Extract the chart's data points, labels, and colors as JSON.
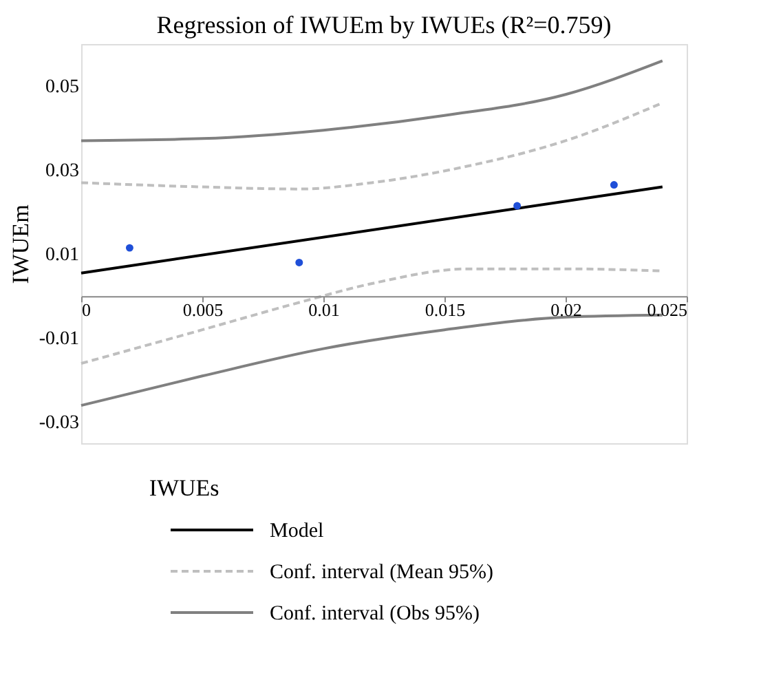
{
  "chart_data": {
    "type": "line",
    "title": "Regression of IWUEm by IWUEs (R²=0.759)",
    "xlabel": "IWUEs",
    "ylabel": "IWUEm",
    "xlim": [
      0,
      0.025
    ],
    "xticks": [
      0,
      0.005,
      0.01,
      0.015,
      0.02,
      0.025
    ],
    "ylim": [
      -0.035,
      0.06
    ],
    "yticks": [
      -0.03,
      -0.01,
      0.01,
      0.03,
      0.05
    ],
    "grid": false,
    "legend": "bottom",
    "series": [
      {
        "name": "Model",
        "color": "#000000",
        "line_style": "solid",
        "x": [
          0,
          0.024
        ],
        "values": [
          0.0055,
          0.026
        ]
      },
      {
        "name": "Conf. interval (Mean 95%)",
        "color": "#bfbfbf",
        "line_style": "dashed",
        "x": [
          0,
          0.005,
          0.009,
          0.012,
          0.016,
          0.02,
          0.024
        ],
        "values": [
          0.027,
          0.026,
          0.0255,
          0.027,
          0.031,
          0.037,
          0.046
        ]
      },
      {
        "color": "#bfbfbf",
        "line_style": "dashed",
        "x": [
          0,
          0.005,
          0.009,
          0.012,
          0.016,
          0.02,
          0.024
        ],
        "values": [
          -0.016,
          -0.008,
          -0.0015,
          0.003,
          0.0065,
          0.0065,
          0.006
        ]
      },
      {
        "name": "Conf. interval (Obs 95%)",
        "color": "#808080",
        "line_style": "solid",
        "x": [
          0,
          0.005,
          0.01,
          0.015,
          0.02,
          0.024
        ],
        "values": [
          0.037,
          0.0375,
          0.0395,
          0.043,
          0.048,
          0.056
        ]
      },
      {
        "color": "#808080",
        "line_style": "solid",
        "x": [
          0,
          0.005,
          0.01,
          0.015,
          0.02,
          0.024
        ],
        "values": [
          -0.026,
          -0.019,
          -0.0125,
          -0.008,
          -0.005,
          -0.0045
        ]
      },
      {
        "type": "scatter",
        "color": "#1f4fd8",
        "marker": "circle",
        "x": [
          0.002,
          0.009,
          0.018,
          0.022
        ],
        "values": [
          0.0115,
          0.008,
          0.0215,
          0.0265
        ]
      }
    ]
  }
}
